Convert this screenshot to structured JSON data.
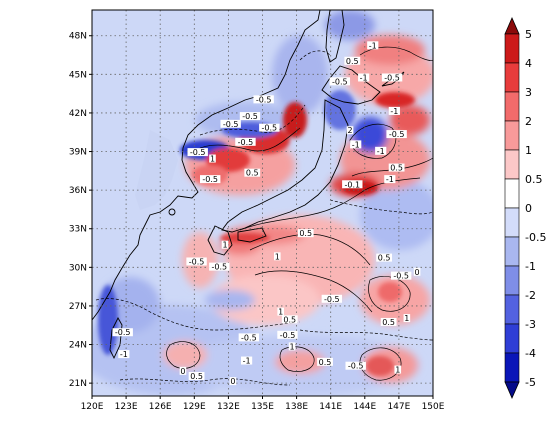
{
  "map": {
    "lon_labels": [
      "120E",
      "123E",
      "126E",
      "129E",
      "132E",
      "135E",
      "138E",
      "141E",
      "144E",
      "147E",
      "150E"
    ],
    "lon_values": [
      120,
      123,
      126,
      129,
      132,
      135,
      138,
      141,
      144,
      147,
      150
    ],
    "lat_labels": [
      "48N",
      "45N",
      "42N",
      "39N",
      "36N",
      "33N",
      "30N",
      "27N",
      "24N",
      "21N"
    ],
    "lat_values": [
      48,
      45,
      42,
      39,
      36,
      33,
      30,
      27,
      24,
      21
    ],
    "lon_range": [
      120,
      150
    ],
    "lat_range": [
      20,
      50
    ],
    "grid": true,
    "contour_labels": [
      {
        "text": "-1",
        "lon": 144.7,
        "lat": 47.1
      },
      {
        "text": "0.5",
        "lon": 142.9,
        "lat": 45.9
      },
      {
        "text": "-1",
        "lon": 143.9,
        "lat": 44.6
      },
      {
        "text": "-0.5",
        "lon": 146.4,
        "lat": 44.6
      },
      {
        "text": "-0.5",
        "lon": 141.8,
        "lat": 44.3
      },
      {
        "text": "-0.5",
        "lon": 135.1,
        "lat": 42.9
      },
      {
        "text": "-1",
        "lon": 146.6,
        "lat": 42.0
      },
      {
        "text": "-0.5",
        "lon": 133.9,
        "lat": 41.6
      },
      {
        "text": "-0.5",
        "lon": 132.2,
        "lat": 41.0
      },
      {
        "text": "-0.5",
        "lon": 135.6,
        "lat": 40.7
      },
      {
        "text": "-0.5",
        "lon": 146.8,
        "lat": 40.2
      },
      {
        "text": "-0.5",
        "lon": 133.5,
        "lat": 39.6
      },
      {
        "text": "-1",
        "lon": 143.2,
        "lat": 39.4
      },
      {
        "text": "2",
        "lon": 142.7,
        "lat": 40.5
      },
      {
        "text": "-1",
        "lon": 145.4,
        "lat": 38.9
      },
      {
        "text": "-0.5",
        "lon": 129.3,
        "lat": 38.8
      },
      {
        "text": "1",
        "lon": 130.6,
        "lat": 38.3
      },
      {
        "text": "0.5",
        "lon": 146.8,
        "lat": 37.6
      },
      {
        "text": "-0.1",
        "lon": 142.9,
        "lat": 36.3
      },
      {
        "text": "0.5",
        "lon": 134.1,
        "lat": 37.2
      },
      {
        "text": "-0.5",
        "lon": 130.4,
        "lat": 36.7
      },
      {
        "text": "-1",
        "lon": 146.2,
        "lat": 36.7
      },
      {
        "text": "0.5",
        "lon": 138.8,
        "lat": 32.5
      },
      {
        "text": "1",
        "lon": 131.7,
        "lat": 31.6
      },
      {
        "text": "-0.5",
        "lon": 129.2,
        "lat": 30.3
      },
      {
        "text": "-0.5",
        "lon": 131.2,
        "lat": 29.9
      },
      {
        "text": "1",
        "lon": 136.3,
        "lat": 30.7
      },
      {
        "text": "0.5",
        "lon": 145.7,
        "lat": 30.6
      },
      {
        "text": "-0.5",
        "lon": 147.2,
        "lat": 29.2
      },
      {
        "text": "0",
        "lon": 148.6,
        "lat": 29.5
      },
      {
        "text": "-0.5",
        "lon": 141.1,
        "lat": 27.4
      },
      {
        "text": "1",
        "lon": 136.6,
        "lat": 26.4
      },
      {
        "text": "0.5",
        "lon": 137.4,
        "lat": 25.8
      },
      {
        "text": "1",
        "lon": 147.7,
        "lat": 25.9
      },
      {
        "text": "0.5",
        "lon": 146.1,
        "lat": 25.6
      },
      {
        "text": "-0.5",
        "lon": 122.7,
        "lat": 24.8
      },
      {
        "text": "-0.5",
        "lon": 137.2,
        "lat": 24.6
      },
      {
        "text": "-0.5",
        "lon": 133.8,
        "lat": 24.4
      },
      {
        "text": "-1",
        "lon": 122.8,
        "lat": 23.1
      },
      {
        "text": "0",
        "lon": 128.0,
        "lat": 21.8
      },
      {
        "text": "-1",
        "lon": 133.6,
        "lat": 22.6
      },
      {
        "text": "1",
        "lon": 137.6,
        "lat": 23.7
      },
      {
        "text": "0.5",
        "lon": 140.5,
        "lat": 22.5
      },
      {
        "text": "-0.5",
        "lon": 143.2,
        "lat": 22.2
      },
      {
        "text": "1",
        "lon": 146.9,
        "lat": 21.9
      },
      {
        "text": "0.5",
        "lon": 129.2,
        "lat": 21.4
      },
      {
        "text": "0",
        "lon": 132.4,
        "lat": 21.0
      }
    ]
  },
  "colorbar": {
    "levels": [
      "5",
      "4",
      "3",
      "2",
      "1",
      "0.5",
      "0",
      "-0.5",
      "-1",
      "-2",
      "-3",
      "-4",
      "-5"
    ],
    "colors": [
      "#8b0a0a",
      "#cc1a1a",
      "#e83c3c",
      "#f26b6b",
      "#f89a9a",
      "#fcc8c8",
      "#ffffff",
      "#d3dcfa",
      "#a9b7f0",
      "#7f8ee8",
      "#5362e0",
      "#2f3ed6",
      "#0a16b8",
      "#050b8a"
    ]
  }
}
